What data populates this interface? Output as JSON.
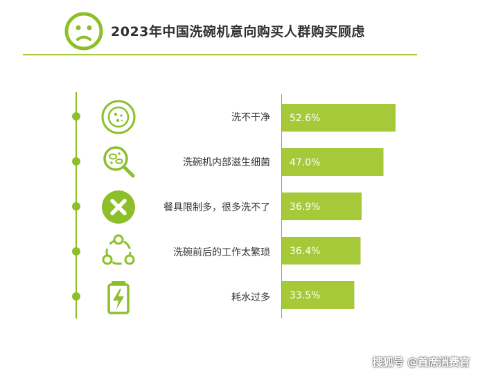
{
  "title": "2023年中国洗碗机意向购买人群购买顾虑",
  "watermark": "搜狐号 @首席消费官",
  "colors": {
    "accent": "#8cbf2a",
    "bar": "#a6c93a",
    "bar_label": "#ffffff",
    "axis": "#9a9a9a"
  },
  "header_icon": "sad-face-icon",
  "rows": [
    {
      "label": "洗不干净",
      "icon": "dirty-plate-icon"
    },
    {
      "label": "洗碗机内部滋生细菌",
      "icon": "bacteria-magnifier-icon"
    },
    {
      "label": "餐具限制多，很多洗不了",
      "icon": "x-circle-icon"
    },
    {
      "label": "洗碗前后的工作太繁琐",
      "icon": "workflow-cycle-icon"
    },
    {
      "label": "耗水过多",
      "icon": "battery-charge-icon"
    }
  ],
  "chart_data": {
    "type": "bar",
    "orientation": "horizontal",
    "title": "2023年中国洗碗机意向购买人群购买顾虑",
    "categories": [
      "洗不干净",
      "洗碗机内部滋生细菌",
      "餐具限制多，很多洗不了",
      "洗碗前后的工作太繁琐",
      "耗水过多"
    ],
    "values": [
      52.6,
      47.0,
      36.9,
      36.4,
      33.5
    ],
    "value_labels": [
      "52.6%",
      "47.0%",
      "36.9%",
      "36.4%",
      "33.5%"
    ],
    "unit": "%",
    "xlim": [
      0,
      56
    ],
    "grid": false,
    "legend": "none"
  }
}
